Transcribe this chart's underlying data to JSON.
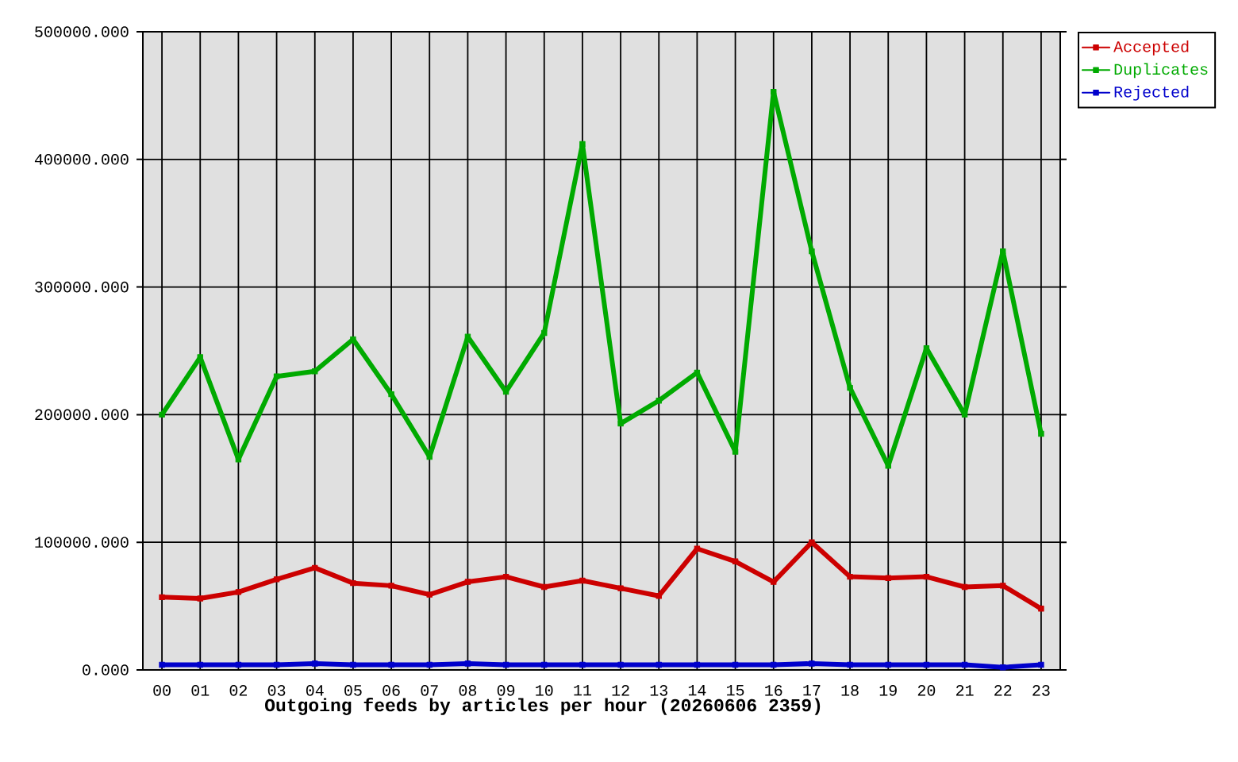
{
  "chart_data": {
    "type": "line",
    "xlabel": "Outgoing feeds by articles per hour (20260606 2359)",
    "categories": [
      "00",
      "01",
      "02",
      "03",
      "04",
      "05",
      "06",
      "07",
      "08",
      "09",
      "10",
      "11",
      "12",
      "13",
      "14",
      "15",
      "16",
      "17",
      "18",
      "19",
      "20",
      "21",
      "22",
      "23"
    ],
    "series": [
      {
        "name": "Accepted",
        "color": "#cc0000",
        "values": [
          57000,
          56000,
          61000,
          71000,
          80000,
          68000,
          66000,
          59000,
          69000,
          73000,
          65000,
          70000,
          64000,
          58000,
          95000,
          85000,
          69000,
          100000,
          73000,
          72000,
          73000,
          65000,
          66000,
          48000
        ]
      },
      {
        "name": "Duplicates",
        "color": "#00aa00",
        "values": [
          200000,
          245000,
          165000,
          230000,
          234000,
          259000,
          216000,
          167000,
          261000,
          218000,
          264000,
          412000,
          193000,
          211000,
          233000,
          171000,
          453000,
          328000,
          221000,
          160000,
          252000,
          200000,
          328000,
          185000
        ]
      },
      {
        "name": "Rejected",
        "color": "#0000cc",
        "values": [
          4000,
          4000,
          4000,
          4000,
          5000,
          4000,
          4000,
          4000,
          5000,
          4000,
          4000,
          4000,
          4000,
          4000,
          4000,
          4000,
          4000,
          5000,
          4000,
          4000,
          4000,
          4000,
          2000,
          4000
        ]
      }
    ],
    "ylim": [
      0,
      500000
    ],
    "yticks": [
      {
        "value": 0,
        "label": "0.000"
      },
      {
        "value": 100000,
        "label": "100000.000"
      },
      {
        "value": 200000,
        "label": "200000.000"
      },
      {
        "value": 300000,
        "label": "300000.000"
      },
      {
        "value": 400000,
        "label": "400000.000"
      },
      {
        "value": 500000,
        "label": "500000.000"
      }
    ],
    "grid": true,
    "legend": "top right",
    "marker": "square"
  }
}
